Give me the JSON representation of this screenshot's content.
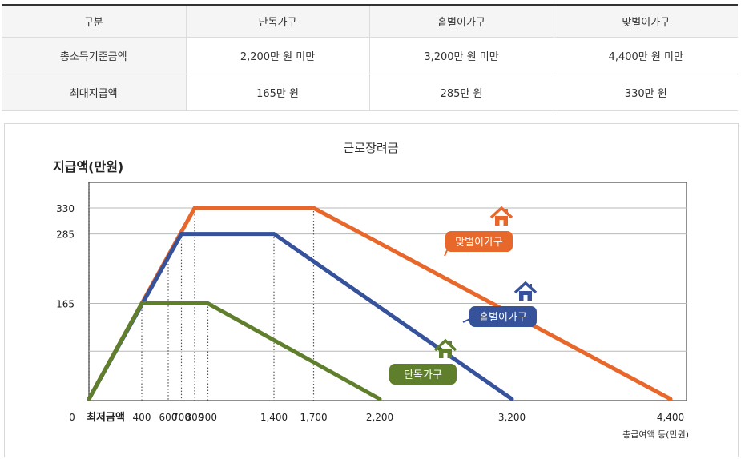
{
  "table": {
    "columns": [
      "구분",
      "단독가구",
      "홑벌이가구",
      "맞벌이가구"
    ],
    "rows": [
      {
        "label": "총소득기준금액",
        "values": [
          "2,200만 원 미만",
          "3,200만 원 미만",
          "4,400만 원 미만"
        ]
      },
      {
        "label": "최대지급액",
        "values": [
          "165만 원",
          "285만 원",
          "330만 원"
        ]
      }
    ]
  },
  "chart_data": {
    "type": "line",
    "title": "근로장려금",
    "ylabel": "지급액(만원)",
    "xlabel": "총급여액 등(만원)",
    "origin_label": "0",
    "min_wage_label": "최저금액",
    "x_ticks": [
      400,
      600,
      700,
      800,
      900,
      1400,
      1700,
      2200,
      3200,
      4400
    ],
    "x_tick_labels": [
      "400",
      "600",
      "700",
      "800",
      "900",
      "1,400",
      "1,700",
      "2,200",
      "3,200",
      "4,400"
    ],
    "y_ticks": [
      165,
      285,
      330
    ],
    "y_tick_labels": [
      "165",
      "285",
      "330"
    ],
    "xlim": [
      0,
      4400
    ],
    "ylim": [
      0,
      330
    ],
    "grid": true,
    "series": [
      {
        "name": "맞벌이가구",
        "color": "#e8672a",
        "icon": "house-icon",
        "points": [
          [
            0,
            0
          ],
          [
            800,
            330
          ],
          [
            1700,
            330
          ],
          [
            4400,
            0
          ]
        ]
      },
      {
        "name": "홑벌이가구",
        "color": "#36529a",
        "icon": "house-icon",
        "points": [
          [
            0,
            0
          ],
          [
            700,
            285
          ],
          [
            1400,
            285
          ],
          [
            3200,
            0
          ]
        ]
      },
      {
        "name": "단독가구",
        "color": "#5f7f2c",
        "icon": "house-icon",
        "points": [
          [
            0,
            0
          ],
          [
            400,
            165
          ],
          [
            900,
            165
          ],
          [
            2200,
            0
          ]
        ]
      }
    ]
  }
}
